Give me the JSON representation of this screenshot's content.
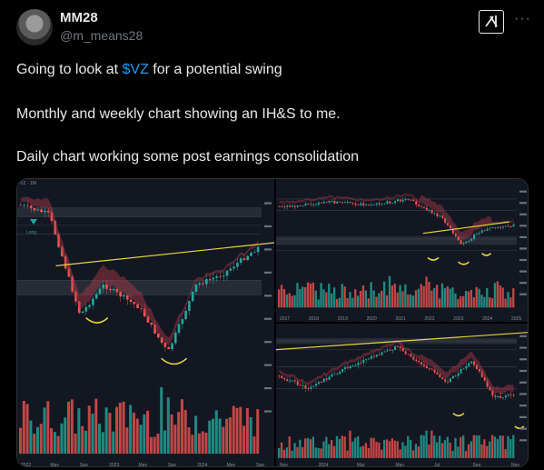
{
  "author": {
    "display_name": "MM28",
    "handle": "@m_means28"
  },
  "icons": {
    "grok": "grok-icon",
    "more": "more-icon"
  },
  "more_label": "···",
  "tweet": {
    "line1_prefix": "Going to look at ",
    "cashtag": "$VZ",
    "line1_suffix": " for a potential swing",
    "line2": "Monthly and weekly chart showing an IH&S to me.",
    "line3": "Daily chart working some post earnings consolidation"
  },
  "colors": {
    "background": "#000000",
    "text": "#e7e9ea",
    "muted": "#71767b",
    "link": "#1d9bf0",
    "chart_bg": "#131722",
    "neckline": "#e5d43a",
    "cloud_bear": "#b23a4a",
    "cloud_bull": "#2f8f4e",
    "up_candle": "#26a69a",
    "down_candle": "#ef5350"
  },
  "charts": {
    "left": {
      "header": "VZ · 1M",
      "signal_label": "Long",
      "x_ticks": [
        "2022",
        "May",
        "Sep",
        "2023",
        "May",
        "Sep",
        "2024",
        "May",
        "Sep"
      ]
    },
    "top_right": {
      "x_ticks": [
        "2017",
        "2018",
        "2019",
        "2020",
        "2021",
        "2022",
        "2023",
        "2024",
        "2025"
      ]
    },
    "bottom_right": {
      "x_ticks": [
        "Nov",
        "2024",
        "Mar",
        "May",
        "Jul",
        "Sep",
        "Nov"
      ]
    }
  }
}
